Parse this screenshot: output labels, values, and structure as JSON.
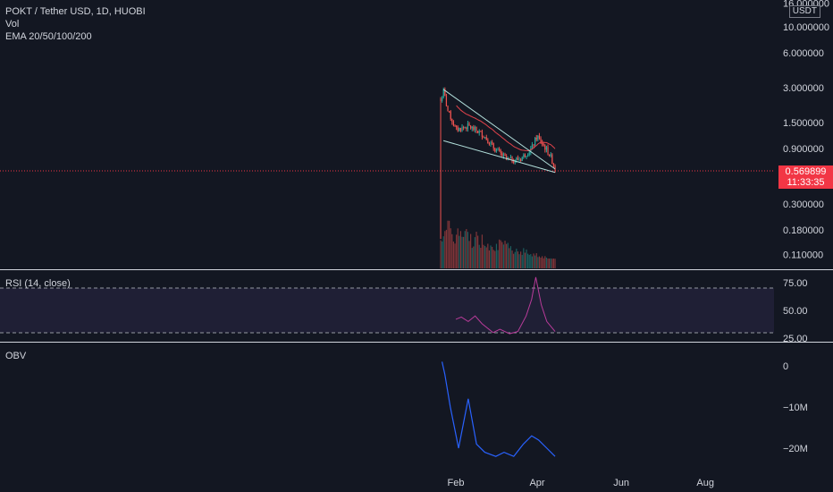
{
  "legend": {
    "title": "POKT / Tether USD, 1D, HUOBI",
    "vol": "Vol",
    "ema": "EMA 20/50/100/200",
    "rsi": "RSI (14, close)",
    "obv": "OBV"
  },
  "currency": "USDT",
  "last_price": "0.569899",
  "countdown": "11:33:35",
  "colors": {
    "up": "#26a69a",
    "down": "#ef5350",
    "rsi": "#b93b9a",
    "obv": "#2962ff",
    "ema": "#e0424b",
    "trend": "#b2dfdb",
    "price_line": "#f23645"
  },
  "chart_data": [
    {
      "type": "candlestick",
      "pane": "price",
      "scale": "log",
      "y_ticks": [
        "16.000000",
        "10.000000",
        "6.000000",
        "3.000000",
        "1.500000",
        "0.900000",
        "0.300000",
        "0.180000",
        "0.110000"
      ],
      "x_ticks": [
        "Feb",
        "Apr",
        "Jun",
        "Aug"
      ],
      "x_range": [
        "2022-01-17",
        "2022-09-10"
      ],
      "last_price": 0.569899,
      "close_series": {
        "dates": [
          "2022-01-21",
          "2022-01-23",
          "2022-01-26",
          "2022-02-01",
          "2022-02-10",
          "2022-02-20",
          "2022-03-01",
          "2022-03-10",
          "2022-03-20",
          "2022-03-28",
          "2022-04-01",
          "2022-04-05",
          "2022-04-10",
          "2022-04-14"
        ],
        "values": [
          2.3,
          2.8,
          1.9,
          1.3,
          1.4,
          1.2,
          0.9,
          0.72,
          0.73,
          0.9,
          1.15,
          0.98,
          0.8,
          0.6
        ]
      },
      "trendlines": [
        {
          "from": [
            "2022-01-23",
            2.9
          ],
          "to": [
            "2022-04-14",
            0.6
          ]
        },
        {
          "from": [
            "2022-01-23",
            1.05
          ],
          "to": [
            "2022-04-14",
            0.56
          ]
        }
      ]
    },
    {
      "type": "line",
      "pane": "rsi",
      "name": "RSI (14, close)",
      "y_ticks": [
        "75.00",
        "50.00",
        "25.00"
      ],
      "bands": [
        70,
        30
      ],
      "x": [
        "2022-02-01",
        "2022-02-05",
        "2022-02-10",
        "2022-02-15",
        "2022-02-20",
        "2022-02-28",
        "2022-03-05",
        "2022-03-12",
        "2022-03-18",
        "2022-03-24",
        "2022-03-28",
        "2022-03-31",
        "2022-04-04",
        "2022-04-08",
        "2022-04-14"
      ],
      "values": [
        42,
        44,
        40,
        45,
        38,
        30,
        33,
        29,
        31,
        45,
        60,
        80,
        55,
        40,
        31
      ]
    },
    {
      "type": "line",
      "pane": "obv",
      "name": "OBV",
      "y_ticks": [
        "0",
        "−10M",
        "−20M"
      ],
      "x": [
        "2022-01-22",
        "2022-01-24",
        "2022-01-28",
        "2022-02-03",
        "2022-02-10",
        "2022-02-16",
        "2022-02-22",
        "2022-03-02",
        "2022-03-08",
        "2022-03-15",
        "2022-03-22",
        "2022-03-28",
        "2022-04-02",
        "2022-04-08",
        "2022-04-14"
      ],
      "values": [
        1,
        -2,
        -10,
        -20,
        -8,
        -19,
        -21,
        -22,
        -21,
        -22,
        -19,
        -17,
        -18,
        -20,
        -22
      ]
    }
  ]
}
